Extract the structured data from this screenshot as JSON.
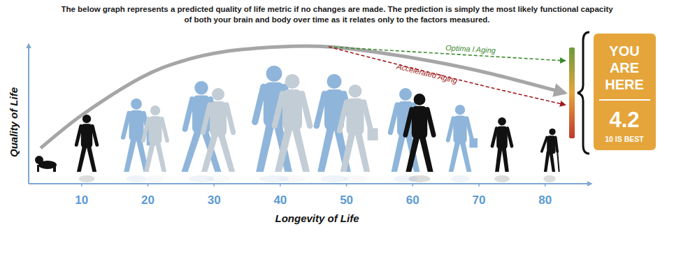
{
  "chart_data": {
    "type": "line",
    "title": "The below graph represents a predicted quality of life metric if no changes are made. The prediction is simply the most likely functional capacity of both your brain and body over time as it relates only to the factors measured.",
    "x_label": "Longevity of Life",
    "y_label": "Quality of Life",
    "xlim": [
      2,
      87
    ],
    "xticks": [
      10,
      20,
      30,
      40,
      50,
      60,
      70,
      80
    ],
    "ylim": [
      0,
      10
    ],
    "tick_labels": "x",
    "series": [
      {
        "x": [
          3.8,
          10,
          18.8,
          25,
          31.5,
          40,
          47.3,
          54.7,
          63.1,
          71.6,
          83
        ],
        "values": [
          2.55,
          4.9,
          7.55,
          8.75,
          9.45,
          9.8,
          9.8,
          9.4,
          8.75,
          7.9,
          6.5
        ],
        "color": "#a6a6a6",
        "line_style": "solid"
      },
      {
        "name": "Optima l Aging",
        "x": [
          47.3,
          83
        ],
        "values": [
          9.8,
          8.8
        ],
        "color": "#3d8b2f",
        "line_style": "dashed"
      },
      {
        "name": "Accelerated Aging",
        "x": [
          47.3,
          54.7,
          63.1,
          71.6,
          83
        ],
        "values": [
          9.8,
          8.9,
          7.9,
          6.9,
          5.65
        ],
        "color": "#a11b1b",
        "line_style": "dashed"
      }
    ],
    "badge": {
      "text": "YOU ARE HERE",
      "score": 4.2,
      "note": "10 IS BEST"
    }
  }
}
